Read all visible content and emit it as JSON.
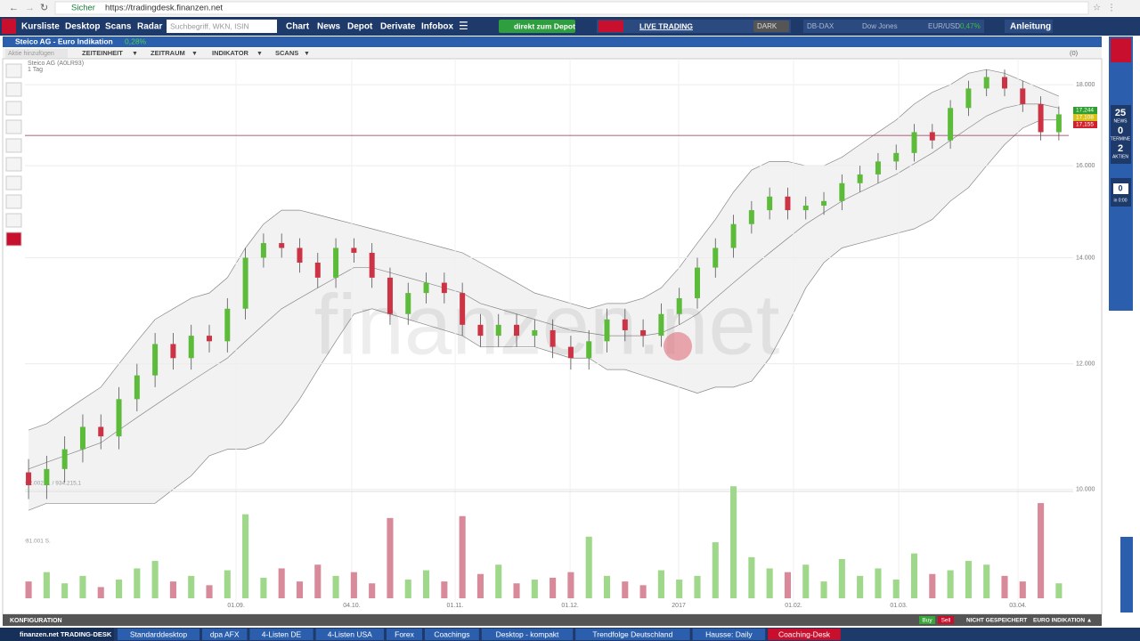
{
  "browser": {
    "secure": "Sicher",
    "url": "https://tradingdesk.finanzen.net"
  },
  "nav": {
    "items": [
      "Kursliste",
      "Desktop",
      "Scans",
      "Radar"
    ],
    "search": "Suchbegriff, WKN, ISIN",
    "items2": [
      "Chart",
      "News",
      "Depot",
      "Derivate",
      "Infobox"
    ],
    "depot_button": "direkt zum Depot",
    "live": "LIVE TRADING",
    "dark": "DARK",
    "tickers": [
      "DB-DAX",
      "Dow Jones",
      "EUR/USD"
    ],
    "ticker_change": "0,47%",
    "help": "Anleitung"
  },
  "window": {
    "title": "Steico AG - Euro Indikation",
    "change": "0,28%",
    "add": "Aktie hinzufügen",
    "menus": [
      "ZEITEINHEIT",
      "ZEITRAUM",
      "INDIKATOR",
      "SCANS"
    ],
    "count": "(0)"
  },
  "sidebar": {
    "news": "25",
    "news_label": "NEWS",
    "termine": "0",
    "termine_label": "TERMINE",
    "aktien": "2",
    "aktien_label": "AKTIEN",
    "events": "0",
    "events_time": "in 0:00"
  },
  "chart_data": {
    "type": "candlestick",
    "subtitle": [
      "Steico AG (A0LR93)",
      "1 Tag"
    ],
    "watermark": "finanzen.net",
    "log_scale": true,
    "x": [
      0,
      1,
      2,
      3,
      4,
      5,
      6,
      7,
      8,
      9,
      10,
      11,
      12,
      13,
      14,
      15,
      16,
      17,
      18,
      19,
      20,
      21,
      22,
      23,
      24,
      25,
      26,
      27,
      28,
      29,
      30,
      31,
      32,
      33,
      34,
      35,
      36,
      37,
      38,
      39,
      40,
      41,
      42,
      43,
      44,
      45,
      46,
      47,
      48,
      49,
      50,
      51,
      52,
      53,
      54,
      55,
      56,
      57
    ],
    "open": [
      10.25,
      10.06,
      10.3,
      10.6,
      10.95,
      10.8,
      11.4,
      11.8,
      12.35,
      12.1,
      12.5,
      12.4,
      13.0,
      14.0,
      14.3,
      14.2,
      13.9,
      13.6,
      14.2,
      14.1,
      13.6,
      12.9,
      13.3,
      13.5,
      13.3,
      12.7,
      12.5,
      12.7,
      12.5,
      12.6,
      12.3,
      12.1,
      12.4,
      12.8,
      12.6,
      12.5,
      12.9,
      13.2,
      13.8,
      14.2,
      14.7,
      15.0,
      15.3,
      15.0,
      15.1,
      15.2,
      15.6,
      15.8,
      16.1,
      16.3,
      16.8,
      16.6,
      17.4,
      17.9,
      18.2,
      17.9,
      17.5,
      16.8
    ],
    "high": [
      10.45,
      10.5,
      10.8,
      11.15,
      11.15,
      11.6,
      12.0,
      12.55,
      12.55,
      12.7,
      12.7,
      13.2,
      14.2,
      14.5,
      14.5,
      14.4,
      14.1,
      14.4,
      14.4,
      14.3,
      13.8,
      13.5,
      13.7,
      13.7,
      13.5,
      12.9,
      12.9,
      12.9,
      12.8,
      12.8,
      12.5,
      12.6,
      13.0,
      13.0,
      12.8,
      13.1,
      13.4,
      14.0,
      14.4,
      14.9,
      15.2,
      15.5,
      15.5,
      15.3,
      15.4,
      15.8,
      16.0,
      16.3,
      16.5,
      17.0,
      17.0,
      17.6,
      18.1,
      18.4,
      18.4,
      18.1,
      17.7,
      17.44
    ],
    "low": [
      9.86,
      9.86,
      10.1,
      10.4,
      10.6,
      10.6,
      11.2,
      11.6,
      11.9,
      11.9,
      12.2,
      12.2,
      12.8,
      13.8,
      14.0,
      13.7,
      13.4,
      13.4,
      13.9,
      13.4,
      12.7,
      12.7,
      13.1,
      13.1,
      12.5,
      12.3,
      12.3,
      12.3,
      12.3,
      12.1,
      11.9,
      11.9,
      12.2,
      12.4,
      12.3,
      12.3,
      12.7,
      13.0,
      13.6,
      14.0,
      14.5,
      14.8,
      14.8,
      14.8,
      14.9,
      15.0,
      15.4,
      15.6,
      15.9,
      16.1,
      16.4,
      16.4,
      17.2,
      17.7,
      17.7,
      17.3,
      16.6,
      16.6
    ],
    "close": [
      10.06,
      10.3,
      10.6,
      10.95,
      10.8,
      11.4,
      11.8,
      12.35,
      12.1,
      12.5,
      12.4,
      13.0,
      14.0,
      14.3,
      14.2,
      13.9,
      13.6,
      14.2,
      14.1,
      13.6,
      12.9,
      13.3,
      13.5,
      13.3,
      12.7,
      12.5,
      12.7,
      12.5,
      12.6,
      12.3,
      12.1,
      12.4,
      12.8,
      12.6,
      12.5,
      12.9,
      13.2,
      13.8,
      14.2,
      14.7,
      15.0,
      15.3,
      15.0,
      15.1,
      15.2,
      15.6,
      15.8,
      16.1,
      16.3,
      16.8,
      16.6,
      17.4,
      17.9,
      18.2,
      17.9,
      17.5,
      16.8,
      17.24
    ],
    "bollinger": {
      "upper": [
        10.9,
        11.0,
        11.2,
        11.4,
        11.6,
        12.0,
        12.4,
        12.8,
        13.0,
        13.2,
        13.3,
        13.6,
        14.2,
        14.7,
        15.0,
        15.0,
        14.9,
        14.8,
        14.7,
        14.6,
        14.5,
        14.4,
        14.3,
        14.2,
        14.1,
        13.9,
        13.7,
        13.5,
        13.3,
        13.2,
        13.1,
        13.0,
        13.1,
        13.1,
        13.2,
        13.4,
        13.8,
        14.3,
        14.8,
        15.4,
        15.9,
        16.1,
        16.1,
        16.0,
        16.0,
        16.2,
        16.5,
        16.8,
        17.1,
        17.5,
        17.8,
        18.0,
        18.3,
        18.4,
        18.3,
        18.1,
        17.9,
        17.7
      ],
      "middle": [
        10.3,
        10.4,
        10.5,
        10.6,
        10.7,
        10.9,
        11.1,
        11.3,
        11.5,
        11.7,
        11.9,
        12.1,
        12.4,
        12.7,
        13.0,
        13.2,
        13.4,
        13.6,
        13.8,
        13.8,
        13.7,
        13.6,
        13.5,
        13.4,
        13.3,
        13.1,
        13.0,
        12.9,
        12.8,
        12.7,
        12.6,
        12.55,
        12.5,
        12.5,
        12.5,
        12.55,
        12.7,
        12.9,
        13.2,
        13.5,
        13.8,
        14.1,
        14.4,
        14.7,
        14.95,
        15.2,
        15.4,
        15.6,
        15.8,
        16.05,
        16.3,
        16.6,
        16.9,
        17.2,
        17.4,
        17.5,
        17.5,
        17.4
      ],
      "lower": [
        9.7,
        9.8,
        9.8,
        9.8,
        9.8,
        9.8,
        9.8,
        9.8,
        10.0,
        10.2,
        10.5,
        10.6,
        10.6,
        10.7,
        11.0,
        11.4,
        11.9,
        12.4,
        12.9,
        13.0,
        12.9,
        12.8,
        12.7,
        12.6,
        12.5,
        12.3,
        12.3,
        12.3,
        12.3,
        12.2,
        12.1,
        12.1,
        11.9,
        11.9,
        11.8,
        11.7,
        11.6,
        11.5,
        11.6,
        11.6,
        11.7,
        12.1,
        12.7,
        13.4,
        13.9,
        14.2,
        14.3,
        14.4,
        14.5,
        14.6,
        14.8,
        15.2,
        15.5,
        16.0,
        16.5,
        16.9,
        17.1,
        17.1
      ]
    },
    "up_color": "#5dbb3a",
    "down_color": "#cc3344",
    "band_color": "#888888",
    "xlim": [
      -0.2,
      57.4
    ],
    "xticks": [
      {
        "value": 11.48,
        "label": "01.09."
      },
      {
        "value": 17.88,
        "label": "04.10."
      },
      {
        "value": 23.6,
        "label": "01.11."
      },
      {
        "value": 29.96,
        "label": "01.12."
      },
      {
        "value": 35.97,
        "label": "2017"
      },
      {
        "value": 42.32,
        "label": "01.02."
      },
      {
        "value": 48.14,
        "label": "01.03."
      },
      {
        "value": 54.74,
        "label": "03.04."
      }
    ],
    "ylim": [
      9.37,
      18.69
    ],
    "yticks": [
      {
        "value": 10,
        "label": "10.000"
      },
      {
        "value": 12,
        "label": "12.000"
      },
      {
        "value": 14,
        "label": "14.000"
      },
      {
        "value": 16,
        "label": "16.000"
      },
      {
        "value": 18,
        "label": "18.000"
      }
    ],
    "grid": true,
    "hline": 16.72,
    "price_tags": [
      {
        "label": "17,244",
        "color": "#2e9e2e"
      },
      {
        "label": "17,108",
        "color": "#d8c21a"
      },
      {
        "label": "17,155",
        "color": "#d0212e"
      }
    ],
    "volume": {
      "values": [
        9000,
        14000,
        8000,
        12000,
        6000,
        10000,
        16000,
        20000,
        9000,
        12000,
        7000,
        15000,
        45000,
        11000,
        16000,
        9000,
        18000,
        12000,
        14000,
        8000,
        43000,
        10000,
        15000,
        9000,
        44000,
        13000,
        18000,
        8000,
        10000,
        11000,
        14000,
        33000,
        12000,
        9000,
        7000,
        15000,
        10000,
        12000,
        30000,
        60000,
        22000,
        16000,
        14000,
        18000,
        9000,
        21000,
        12000,
        16000,
        10000,
        24000,
        13000,
        15000,
        20000,
        18000,
        12000,
        9000,
        51000,
        8000
      ],
      "ylim": [
        0,
        62002
      ],
      "yticks": [
        {
          "value": 31001,
          "label": "31.001 S."
        },
        {
          "value": 62002,
          "label": "62.002 S. / 934.215,1"
        }
      ],
      "up_color": "#9fd88a",
      "down_color": "#d98a9a"
    }
  },
  "footer": {
    "config": "KONFIGURATION",
    "buy": "Buy",
    "sell": "Sell",
    "saved": "NICHT GESPEICHERT",
    "mode": "EURO INDIKATION ▲"
  },
  "taskbar": {
    "brand": "finanzen.net TRADING-DESK",
    "tabs": [
      "Standarddesktop",
      "dpa AFX",
      "4-Listen DE",
      "4-Listen USA",
      "Forex",
      "Coachings",
      "Desktop - kompakt",
      "Trendfolge Deutschland",
      "Hausse: Daily",
      "Coaching-Desk"
    ]
  }
}
